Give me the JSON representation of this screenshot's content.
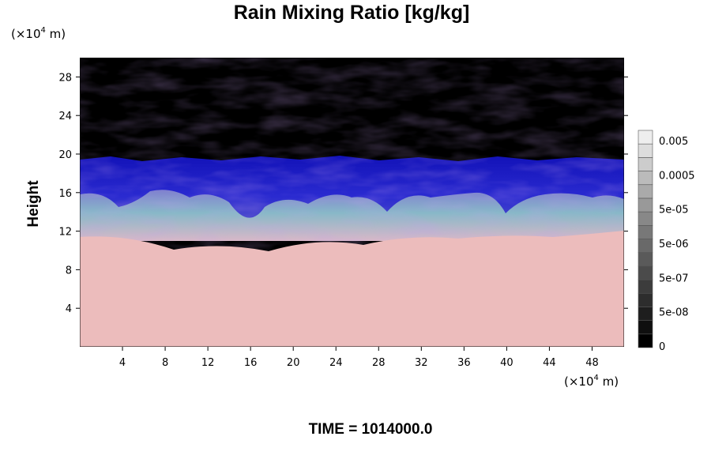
{
  "chart_data": {
    "type": "heatmap",
    "title": "Rain Mixing Ratio [kg/kg]",
    "ylabel": "Height",
    "xlabel": "",
    "x_unit": {
      "prefix": "(×10",
      "exp": "4",
      "suffix": " m)"
    },
    "y_unit": {
      "prefix": "(×10",
      "exp": "4",
      "suffix": " m)"
    },
    "xlim": [
      0,
      51
    ],
    "ylim": [
      0,
      30
    ],
    "xticks": [
      4,
      8,
      12,
      16,
      20,
      24,
      28,
      32,
      36,
      40,
      44,
      48
    ],
    "yticks": [
      4,
      8,
      12,
      16,
      20,
      24,
      28
    ],
    "regions": [
      {
        "name": "upper",
        "y_from": 19.5,
        "y_to": 30,
        "color": "#000000"
      },
      {
        "name": "blue band",
        "y_from": 15.5,
        "y_to": 19.5,
        "color": "#1c1cc4"
      },
      {
        "name": "mixed",
        "y_from": 12,
        "y_to": 15.5,
        "color": "#9a9ad6"
      },
      {
        "name": "lower",
        "y_from": 0,
        "y_to": 11.5,
        "color": "#ecbcbc"
      }
    ],
    "colorbar": {
      "labels": [
        "0.005",
        "0.0005",
        "5e-05",
        "5e-06",
        "5e-07",
        "5e-08",
        "0"
      ],
      "levels": 16,
      "grays_bottom_to_top": [
        "#000000",
        "#0f0f0f",
        "#1e1e1e",
        "#2d2d2d",
        "#3c3c3c",
        "#4b4b4b",
        "#5a5a5a",
        "#696969",
        "#787878",
        "#888888",
        "#999999",
        "#aaaaaa",
        "#bbbbbb",
        "#cccccc",
        "#dddddd",
        "#eeeeee"
      ]
    },
    "footer": "TIME = 1014000.0"
  }
}
